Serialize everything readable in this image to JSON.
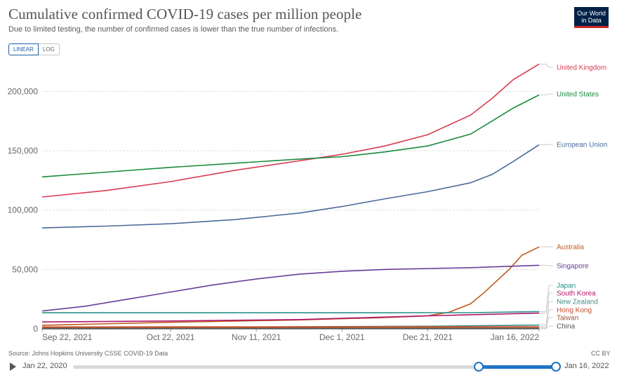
{
  "header": {
    "title": "Cumulative confirmed COVID-19 cases per million people",
    "subtitle": "Due to limited testing, the number of confirmed cases is lower than the true number of infections.",
    "logo_line1": "Our World",
    "logo_line2": "in Data"
  },
  "scale_toggle": {
    "linear": "LINEAR",
    "log": "LOG"
  },
  "footer": {
    "source": "Source: Johns Hopkins University CSSE COVID-19 Data",
    "license": "CC BY"
  },
  "timeline": {
    "start": "Jan 22, 2020",
    "end": "Jan 16, 2022"
  },
  "chart_data": {
    "type": "line",
    "x_ticks": [
      "Sep 22, 2021",
      "Oct 22, 2021",
      "Nov 11, 2021",
      "Dec 1, 2021",
      "Dec 21, 2021",
      "Jan 16, 2022"
    ],
    "y_ticks": [
      0,
      50000,
      100000,
      150000,
      200000
    ],
    "y_tick_labels": [
      "0",
      "50,000",
      "100,000",
      "150,000",
      "200,000"
    ],
    "ylim": [
      0,
      225000
    ],
    "x_range": [
      "2021-09-22",
      "2022-01-16"
    ],
    "grid": "horizontal dashed",
    "legend": "right, labels at line ends",
    "series": [
      {
        "name": "United Kingdom",
        "color": "#d73c50",
        "points": [
          [
            "2021-09-22",
            111000
          ],
          [
            "2021-10-07",
            116500
          ],
          [
            "2021-10-22",
            124000
          ],
          [
            "2021-11-06",
            133500
          ],
          [
            "2021-11-21",
            141500
          ],
          [
            "2021-12-01",
            147000
          ],
          [
            "2021-12-11",
            154000
          ],
          [
            "2021-12-21",
            163500
          ],
          [
            "2021-12-31",
            180000
          ],
          [
            "2022-01-05",
            194000
          ],
          [
            "2022-01-10",
            210000
          ],
          [
            "2022-01-16",
            223000
          ]
        ]
      },
      {
        "name": "United States",
        "color": "#1a8a3c",
        "points": [
          [
            "2021-09-22",
            128000
          ],
          [
            "2021-10-07",
            132000
          ],
          [
            "2021-10-22",
            136000
          ],
          [
            "2021-11-06",
            139500
          ],
          [
            "2021-11-21",
            143000
          ],
          [
            "2021-12-01",
            145000
          ],
          [
            "2021-12-11",
            149000
          ],
          [
            "2021-12-21",
            154000
          ],
          [
            "2021-12-31",
            164000
          ],
          [
            "2022-01-05",
            175000
          ],
          [
            "2022-01-10",
            186000
          ],
          [
            "2022-01-16",
            197000
          ]
        ]
      },
      {
        "name": "European Union",
        "color": "#4c6a9c",
        "points": [
          [
            "2021-09-22",
            85000
          ],
          [
            "2021-10-07",
            86500
          ],
          [
            "2021-10-22",
            88500
          ],
          [
            "2021-11-06",
            92000
          ],
          [
            "2021-11-21",
            97500
          ],
          [
            "2021-12-01",
            103000
          ],
          [
            "2021-12-11",
            109500
          ],
          [
            "2021-12-21",
            115500
          ],
          [
            "2021-12-31",
            123000
          ],
          [
            "2022-01-05",
            130000
          ],
          [
            "2022-01-10",
            141000
          ],
          [
            "2022-01-16",
            155000
          ]
        ]
      },
      {
        "name": "Australia",
        "color": "#c15a1b",
        "points": [
          [
            "2021-09-22",
            3000
          ],
          [
            "2021-10-22",
            5500
          ],
          [
            "2021-11-21",
            7500
          ],
          [
            "2021-12-11",
            9500
          ],
          [
            "2021-12-21",
            11000
          ],
          [
            "2021-12-26",
            14000
          ],
          [
            "2021-12-31",
            21000
          ],
          [
            "2022-01-03",
            30000
          ],
          [
            "2022-01-06",
            40000
          ],
          [
            "2022-01-09",
            50000
          ],
          [
            "2022-01-12",
            62000
          ],
          [
            "2022-01-16",
            69000
          ]
        ]
      },
      {
        "name": "Singapore",
        "color": "#6a3d9a",
        "points": [
          [
            "2021-09-22",
            15000
          ],
          [
            "2021-10-02",
            19000
          ],
          [
            "2021-10-12",
            25000
          ],
          [
            "2021-10-22",
            31000
          ],
          [
            "2021-11-01",
            37000
          ],
          [
            "2021-11-11",
            42000
          ],
          [
            "2021-11-21",
            46000
          ],
          [
            "2021-12-01",
            48500
          ],
          [
            "2021-12-11",
            50000
          ],
          [
            "2021-12-21",
            50800
          ],
          [
            "2021-12-31",
            51500
          ],
          [
            "2022-01-16",
            53500
          ]
        ]
      },
      {
        "name": "Japan",
        "color": "#28918a",
        "points": [
          [
            "2021-09-22",
            13500
          ],
          [
            "2021-12-31",
            13600
          ],
          [
            "2022-01-16",
            14500
          ]
        ]
      },
      {
        "name": "South Korea",
        "color": "#b0166c",
        "points": [
          [
            "2021-09-22",
            5800
          ],
          [
            "2021-10-22",
            6600
          ],
          [
            "2021-11-21",
            7800
          ],
          [
            "2021-12-21",
            11000
          ],
          [
            "2022-01-16",
            13200
          ]
        ]
      },
      {
        "name": "New Zealand",
        "color": "#3f8f8c",
        "points": [
          [
            "2021-09-22",
            800
          ],
          [
            "2021-12-21",
            2200
          ],
          [
            "2022-01-16",
            3200
          ]
        ]
      },
      {
        "name": "Hong Kong",
        "color": "#c4502a",
        "points": [
          [
            "2021-09-22",
            1600
          ],
          [
            "2022-01-16",
            1800
          ]
        ]
      },
      {
        "name": "Taiwan",
        "color": "#9a5b3a",
        "points": [
          [
            "2021-09-22",
            700
          ],
          [
            "2022-01-16",
            760
          ]
        ]
      },
      {
        "name": "China",
        "color": "#555555",
        "points": [
          [
            "2021-09-22",
            80
          ],
          [
            "2022-01-16",
            90
          ]
        ]
      }
    ]
  }
}
